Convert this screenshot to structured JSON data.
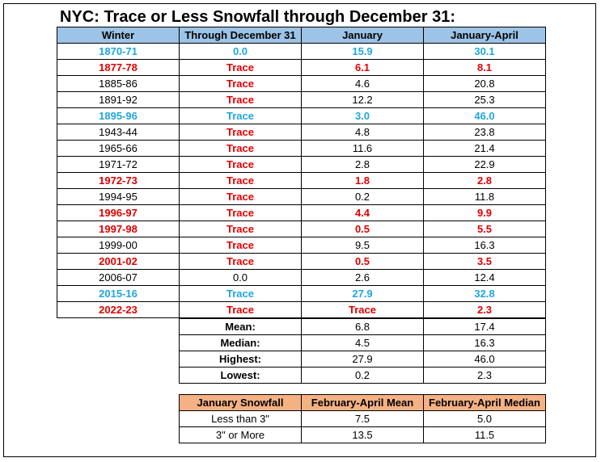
{
  "title": "NYC: Trace or Less Snowfall through December 31:",
  "colors": {
    "header_blue": "#9DC3E6",
    "header_orange": "#F4B183",
    "highlight_blue": "#1FA6DD",
    "highlight_red": "#E00000"
  },
  "main_table": {
    "headers": [
      "Winter",
      "Through December 31",
      "January",
      "January-April"
    ],
    "rows": [
      {
        "winter": "1870-71",
        "dec": "0.0",
        "jan": "15.9",
        "janapr": "30.1",
        "style": "blue"
      },
      {
        "winter": "1877-78",
        "dec": "Trace",
        "jan": "6.1",
        "janapr": "8.1",
        "style": "red"
      },
      {
        "winter": "1885-86",
        "dec": "Trace",
        "jan": "4.6",
        "janapr": "20.8",
        "style": "mixed"
      },
      {
        "winter": "1891-92",
        "dec": "Trace",
        "jan": "12.2",
        "janapr": "25.3",
        "style": "mixed"
      },
      {
        "winter": "1895-96",
        "dec": "Trace",
        "jan": "3.0",
        "janapr": "46.0",
        "style": "blue"
      },
      {
        "winter": "1943-44",
        "dec": "Trace",
        "jan": "4.8",
        "janapr": "23.8",
        "style": "mixed"
      },
      {
        "winter": "1965-66",
        "dec": "Trace",
        "jan": "11.6",
        "janapr": "21.4",
        "style": "mixed"
      },
      {
        "winter": "1971-72",
        "dec": "Trace",
        "jan": "2.8",
        "janapr": "22.9",
        "style": "mixed"
      },
      {
        "winter": "1972-73",
        "dec": "Trace",
        "jan": "1.8",
        "janapr": "2.8",
        "style": "red"
      },
      {
        "winter": "1994-95",
        "dec": "Trace",
        "jan": "0.2",
        "janapr": "11.8",
        "style": "mixed"
      },
      {
        "winter": "1996-97",
        "dec": "Trace",
        "jan": "4.4",
        "janapr": "9.9",
        "style": "red"
      },
      {
        "winter": "1997-98",
        "dec": "Trace",
        "jan": "0.5",
        "janapr": "5.5",
        "style": "red"
      },
      {
        "winter": "1999-00",
        "dec": "Trace",
        "jan": "9.5",
        "janapr": "16.3",
        "style": "mixed"
      },
      {
        "winter": "2001-02",
        "dec": "Trace",
        "jan": "0.5",
        "janapr": "3.5",
        "style": "red"
      },
      {
        "winter": "2006-07",
        "dec": "0.0",
        "jan": "2.6",
        "janapr": "12.4",
        "style": "black"
      },
      {
        "winter": "2015-16",
        "dec": "Trace",
        "jan": "27.9",
        "janapr": "32.8",
        "style": "blue"
      },
      {
        "winter": "2022-23",
        "dec": "Trace",
        "jan": "Trace",
        "janapr": "2.3",
        "style": "red"
      }
    ]
  },
  "stats_table": {
    "rows": [
      {
        "label": "Mean:",
        "jan": "6.8",
        "janapr": "17.4"
      },
      {
        "label": "Median:",
        "jan": "4.5",
        "janapr": "16.3"
      },
      {
        "label": "Highest:",
        "jan": "27.9",
        "janapr": "46.0"
      },
      {
        "label": "Lowest:",
        "jan": "0.2",
        "janapr": "2.3"
      }
    ]
  },
  "snow_table": {
    "headers": [
      "January Snowfall",
      "February-April Mean",
      "February-April Median"
    ],
    "rows": [
      {
        "label": "Less than 3\"",
        "mean": "7.5",
        "median": "5.0"
      },
      {
        "label": "3\" or More",
        "mean": "13.5",
        "median": "11.5"
      }
    ]
  }
}
